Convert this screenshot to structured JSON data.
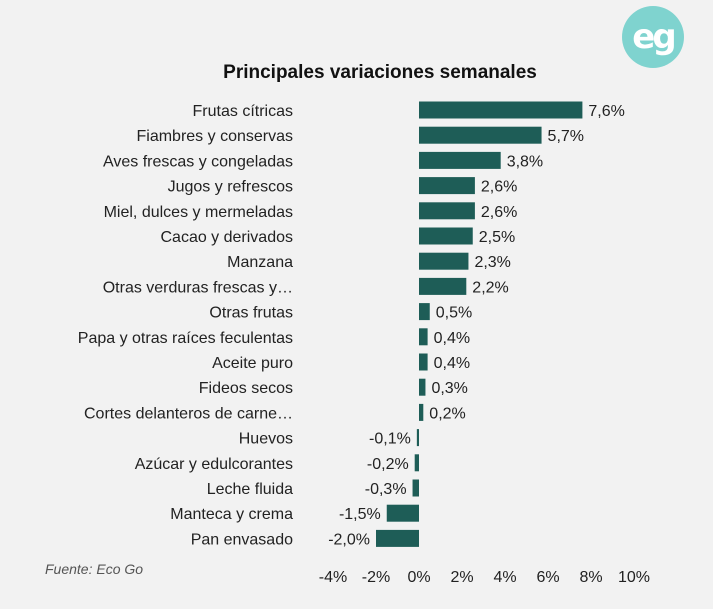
{
  "logo_text": "eg",
  "chart_data": {
    "type": "bar",
    "orientation": "horizontal",
    "title": "Principales variaciones semanales",
    "source": "Fuente: Eco Go",
    "bar_color": "#1e5d57",
    "categories": [
      "Frutas cítricas",
      "Fiambres y conservas",
      "Aves frescas y congeladas",
      "Jugos y refrescos",
      "Miel, dulces y mermeladas",
      "Cacao y derivados",
      "Manzana",
      "Otras verduras frescas y…",
      "Otras frutas",
      "Papa y otras raíces feculentas",
      "Aceite puro",
      "Fideos secos",
      "Cortes delanteros de carne…",
      "Huevos",
      "Azúcar y edulcorantes",
      "Leche fluida",
      "Manteca y crema",
      "Pan envasado"
    ],
    "values": [
      7.6,
      5.7,
      3.8,
      2.6,
      2.6,
      2.5,
      2.3,
      2.2,
      0.5,
      0.4,
      0.4,
      0.3,
      0.2,
      -0.1,
      -0.2,
      -0.3,
      -1.5,
      -2.0
    ],
    "value_labels": [
      "7,6%",
      "5,7%",
      "3,8%",
      "2,6%",
      "2,6%",
      "2,5%",
      "2,3%",
      "2,2%",
      "0,5%",
      "0,4%",
      "0,4%",
      "0,3%",
      "0,2%",
      "-0,1%",
      "-0,2%",
      "-0,3%",
      "-1,5%",
      "-2,0%"
    ],
    "xticks": [
      -4,
      -2,
      0,
      2,
      4,
      6,
      8,
      10
    ],
    "xtick_labels": [
      "-4%",
      "-2%",
      "0%",
      "2%",
      "4%",
      "6%",
      "8%",
      "10%"
    ],
    "xlim": [
      -4,
      10
    ],
    "grid": false,
    "legend": false
  }
}
